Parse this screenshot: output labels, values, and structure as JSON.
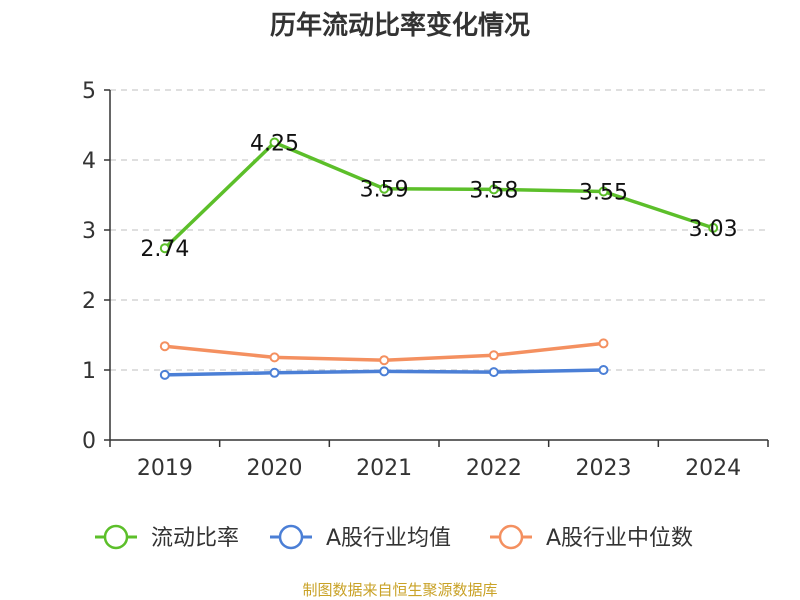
{
  "chart_data": {
    "type": "line",
    "title": "历年流动比率变化情况",
    "categories": [
      "2019",
      "2020",
      "2021",
      "2022",
      "2023",
      "2024"
    ],
    "ylim": [
      0,
      5
    ],
    "yticks": [
      0,
      1,
      2,
      3,
      4,
      5
    ],
    "grid": true,
    "legend_position": "bottom",
    "series": [
      {
        "name": "流动比率",
        "color": "#5cbf2a",
        "values": [
          2.74,
          4.25,
          3.59,
          3.58,
          3.55,
          3.03
        ],
        "labels": [
          "2.74",
          "4.25",
          "3.59",
          "3.58",
          "3.55",
          "3.03"
        ],
        "show_labels": true
      },
      {
        "name": "A股行业均值",
        "color": "#4b7fd6",
        "values": [
          0.93,
          0.96,
          0.98,
          0.97,
          1.0,
          null
        ],
        "show_labels": false
      },
      {
        "name": "A股行业中位数",
        "color": "#f49060",
        "values": [
          1.34,
          1.18,
          1.14,
          1.21,
          1.38,
          null
        ],
        "show_labels": false
      }
    ]
  },
  "footer": {
    "source": "制图数据来自恒生聚源数据库"
  }
}
